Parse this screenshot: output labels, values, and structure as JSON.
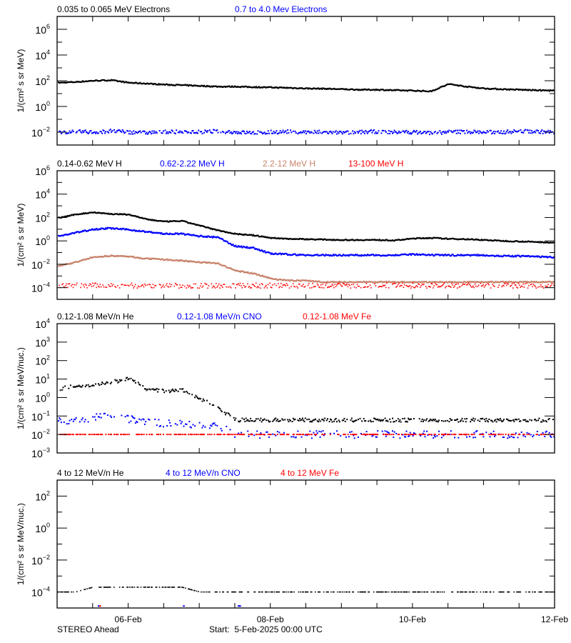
{
  "time_axis": {
    "start": "2025-02-05 00:00",
    "end": "2025-02-12 00:00",
    "tick_interval_hours": 12,
    "tick_labels": [
      {
        "time": "2025-02-06 00:00",
        "label": "06-Feb"
      },
      {
        "time": "2025-02-08 00:00",
        "label": "08-Feb"
      },
      {
        "time": "2025-02-10 00:00",
        "label": "10-Feb"
      },
      {
        "time": "2025-02-12 00:00",
        "label": "12-Feb"
      }
    ],
    "sample_times": [
      "2025-02-05 00:00",
      "2025-02-05 06:00",
      "2025-02-05 12:00",
      "2025-02-05 18:00",
      "2025-02-06 00:00",
      "2025-02-06 06:00",
      "2025-02-06 12:00",
      "2025-02-06 18:00",
      "2025-02-07 00:00",
      "2025-02-07 06:00",
      "2025-02-07 12:00",
      "2025-02-07 18:00",
      "2025-02-08 00:00",
      "2025-02-08 06:00",
      "2025-02-08 12:00",
      "2025-02-08 18:00",
      "2025-02-09 00:00",
      "2025-02-09 06:00",
      "2025-02-09 12:00",
      "2025-02-09 18:00",
      "2025-02-10 00:00",
      "2025-02-10 06:00",
      "2025-02-10 12:00",
      "2025-02-10 18:00",
      "2025-02-11 00:00",
      "2025-02-11 06:00",
      "2025-02-11 12:00",
      "2025-02-11 18:00",
      "2025-02-12 00:00"
    ]
  },
  "footer": {
    "spacecraft": "STEREO Ahead",
    "start_label": "Start:  5-Feb-2025 00:00 UTC"
  },
  "colors": {
    "black": "#000000",
    "blue": "#0000ff",
    "brown": "#c8826a",
    "red": "#ff0000"
  },
  "chart_data": [
    {
      "type": "scatter",
      "yscale": "log",
      "ylim": [
        0.001,
        10000000
      ],
      "ytick_exponents": [
        -2,
        0,
        2,
        4,
        6
      ],
      "ylabel": "1/(cm² s sr MeV)",
      "grid": false,
      "series": [
        {
          "name": "0.035 to 0.065 MeV Electrons",
          "color": "#000000",
          "values": [
            70,
            80,
            100,
            110,
            70,
            60,
            50,
            45,
            40,
            35,
            35,
            32,
            30,
            28,
            25,
            24,
            22,
            20,
            20,
            18,
            17,
            15,
            55,
            35,
            25,
            22,
            20,
            18,
            17
          ]
        },
        {
          "name": "0.7 to 4.0 Mev Electrons",
          "color": "#0000ff",
          "values": [
            0.01,
            0.011,
            0.01,
            0.012,
            0.01,
            0.009,
            0.011,
            0.01,
            0.01,
            0.012,
            0.01,
            0.009,
            0.01,
            0.011,
            0.01,
            0.01,
            0.009,
            0.01,
            0.011,
            0.01,
            0.01,
            0.009,
            0.01,
            0.011,
            0.01,
            0.01,
            0.012,
            0.011,
            0.01
          ]
        }
      ]
    },
    {
      "type": "scatter",
      "yscale": "log",
      "ylim": [
        1e-05,
        1000000
      ],
      "ytick_exponents": [
        -4,
        -2,
        0,
        2,
        4,
        6
      ],
      "ylabel": "1/(cm² s sr MeV)",
      "grid": false,
      "series": [
        {
          "name": "0.14-0.62 MeV H",
          "color": "#000000",
          "values": [
            90,
            180,
            280,
            200,
            180,
            70,
            45,
            50,
            20,
            8,
            4,
            3,
            1.8,
            1.5,
            1.4,
            1.3,
            1.2,
            1.2,
            1.2,
            1.1,
            1.6,
            1.8,
            1.5,
            1.4,
            1.2,
            1.0,
            0.9,
            0.8,
            0.7
          ]
        },
        {
          "name": "0.62-2.22 MeV H",
          "color": "#0000ff",
          "values": [
            2.4,
            5,
            10,
            12,
            9,
            6,
            4,
            4,
            2.5,
            2,
            0.35,
            0.25,
            0.08,
            0.07,
            0.06,
            0.06,
            0.06,
            0.06,
            0.06,
            0.06,
            0.07,
            0.06,
            0.06,
            0.06,
            0.06,
            0.05,
            0.05,
            0.045,
            0.04
          ]
        },
        {
          "name": "2.2-12 MeV H",
          "color": "#c8826a",
          "values": [
            0.0065,
            0.015,
            0.04,
            0.054,
            0.045,
            0.03,
            0.025,
            0.02,
            0.015,
            0.012,
            0.0028,
            0.0017,
            0.0006,
            0.0004,
            0.0004,
            0.0003,
            0.0003,
            0.0003,
            0.0003,
            0.0003,
            0.0003,
            0.0003,
            0.0003,
            0.0003,
            0.0003,
            0.0003,
            0.0003,
            0.0003,
            0.0003
          ]
        },
        {
          "name": "13-100 MeV H",
          "color": "#ff0000",
          "values": [
            0.00015,
            0.00015,
            0.00015,
            0.00015,
            0.00015,
            0.00015,
            0.00015,
            0.00015,
            0.00015,
            0.00015,
            0.00015,
            0.00015,
            0.00015,
            0.00015,
            0.00015,
            0.00015,
            0.00015,
            0.00015,
            0.00015,
            0.00015,
            0.00015,
            0.00015,
            0.00015,
            0.00015,
            0.00015,
            0.00015,
            0.00015,
            0.00015,
            0.00015
          ]
        }
      ]
    },
    {
      "type": "scatter",
      "yscale": "log",
      "ylim": [
        0.001,
        10000
      ],
      "ytick_exponents": [
        -3,
        -2,
        -1,
        0,
        1,
        2,
        3,
        4
      ],
      "ylabel": "1/(cm² s sr MeV/nuc.)",
      "grid": false,
      "series": [
        {
          "name": "0.12-1.08 MeV/n He",
          "color": "#000000",
          "values": [
            3,
            4,
            5,
            7,
            10,
            3,
            2.2,
            2.5,
            0.9,
            0.3,
            0.06,
            0.06,
            0.06,
            0.06,
            0.06,
            0.06,
            0.06,
            0.06,
            0.06,
            0.06,
            0.06,
            0.06,
            0.06,
            0.06,
            0.06,
            0.06,
            0.06,
            0.06,
            0.06
          ]
        },
        {
          "name": "0.12-1.08 MeV/n CNO",
          "color": "#0000ff",
          "values": [
            0.05,
            0.06,
            0.08,
            0.1,
            0.07,
            0.05,
            0.04,
            0.04,
            0.03,
            0.03,
            0.01,
            0.01,
            0.01,
            0.01,
            0.01,
            0.01,
            0.01,
            0.01,
            0.01,
            0.01,
            0.01,
            0.01,
            0.01,
            0.01,
            0.01,
            0.01,
            0.01,
            0.01,
            0.01
          ]
        },
        {
          "name": "0.12-1.08 MeV Fe",
          "color": "#ff0000",
          "values": [
            0.01,
            0.01,
            0.01,
            0.01,
            0.01,
            0.01,
            0.01,
            0.01,
            0.01,
            0.01,
            0.01,
            0.01,
            0.01,
            0.01,
            0.01,
            0.01,
            0.01,
            0.01,
            0.01,
            0.01,
            0.01,
            0.01,
            0.01,
            0.01,
            0.01,
            0.01,
            0.01,
            0.01,
            0.01
          ]
        }
      ]
    },
    {
      "type": "scatter",
      "yscale": "log",
      "ylim": [
        1e-05,
        1000
      ],
      "ytick_exponents": [
        -4,
        -2,
        0,
        2
      ],
      "ylabel": "1/(cm² s sr MeV/nuc.)",
      "grid": false,
      "series": [
        {
          "name": "4 to 12 MeV/n He",
          "color": "#000000",
          "values": [
            0.0001,
            0.0001,
            0.0002,
            0.0002,
            0.0002,
            0.0002,
            0.0002,
            0.0002,
            0.0001,
            0.0001,
            0.0001,
            0.0001,
            0.0001,
            0.0001,
            0.0001,
            0.0001,
            0.0001,
            0.0001,
            0.0001,
            0.0001,
            0.0001,
            0.0001,
            0.0001,
            0.0001,
            0.0001,
            0.0001,
            0.0001,
            0.0001,
            0.0001
          ]
        },
        {
          "name": "4 to 12 MeV/n CNO",
          "color": "#0000ff",
          "points": [
            [
              "2025-02-05 13:45",
              1.2e-05
            ],
            [
              "2025-02-06 18:30",
              1.2e-05
            ],
            [
              "2025-02-07 13:00",
              1.2e-05
            ],
            [
              "2025-02-07 13:30",
              1.2e-05
            ]
          ]
        },
        {
          "name": "4 to 12 MeV Fe",
          "color": "#ff0000",
          "points": [
            [
              "2025-02-05 14:15",
              1.2e-05
            ]
          ]
        }
      ]
    }
  ]
}
